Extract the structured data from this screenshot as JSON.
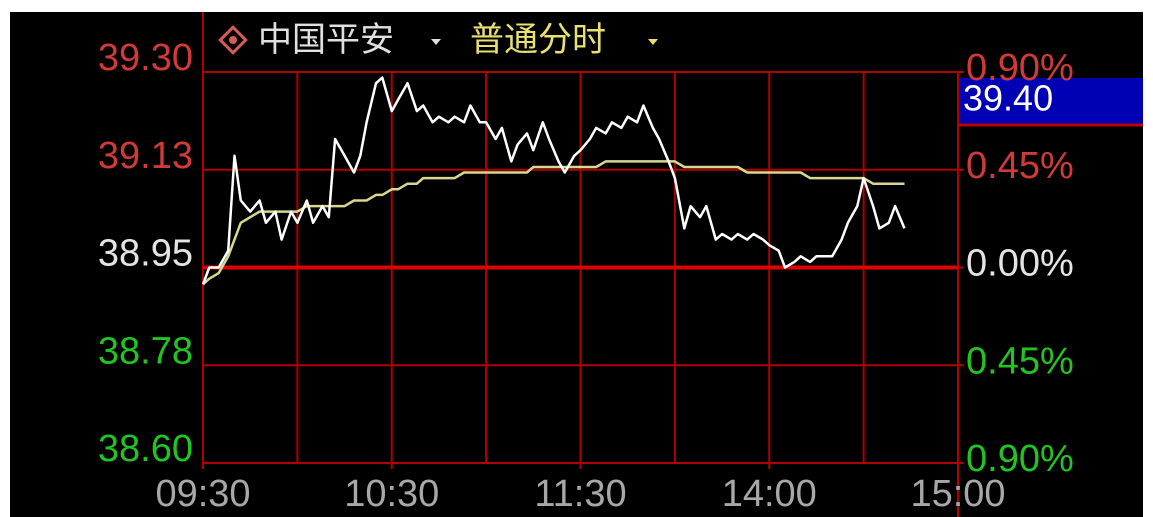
{
  "chart_data": {
    "type": "line",
    "stock_name": "中国平安",
    "view_mode": "普通分时",
    "current_price_label": "39.40",
    "x": [
      0,
      2,
      5,
      8,
      10,
      12,
      15,
      18,
      20,
      23,
      25,
      28,
      30,
      33,
      35,
      38,
      40,
      42,
      45,
      48,
      50,
      52,
      55,
      57,
      60,
      62,
      65,
      68,
      70,
      73,
      75,
      78,
      80,
      83,
      85,
      88,
      90,
      93,
      95,
      98,
      100,
      103,
      105,
      108,
      110,
      113,
      115,
      118,
      120,
      123,
      125,
      128,
      130,
      133,
      135,
      138,
      140,
      143,
      145,
      148,
      150,
      153,
      155,
      158,
      160,
      163,
      165,
      168,
      170,
      173,
      175,
      178,
      180,
      183,
      185,
      188,
      190,
      193,
      195,
      198,
      200,
      203,
      205,
      208,
      210,
      213,
      215,
      218,
      220,
      223
    ],
    "series": [
      {
        "color": "#ffffff",
        "values": [
          38.92,
          38.95,
          38.95,
          38.98,
          39.15,
          39.07,
          39.05,
          39.07,
          39.03,
          39.05,
          39.0,
          39.05,
          39.03,
          39.07,
          39.03,
          39.06,
          39.04,
          39.18,
          39.15,
          39.12,
          39.15,
          39.21,
          39.28,
          39.29,
          39.23,
          39.25,
          39.28,
          39.23,
          39.24,
          39.21,
          39.22,
          39.21,
          39.22,
          39.21,
          39.24,
          39.21,
          39.21,
          39.18,
          39.2,
          39.14,
          39.17,
          39.19,
          39.16,
          39.21,
          39.18,
          39.14,
          39.12,
          39.15,
          39.16,
          39.18,
          39.2,
          39.19,
          39.21,
          39.2,
          39.22,
          39.21,
          39.24,
          39.2,
          39.18,
          39.14,
          39.11,
          39.02,
          39.06,
          39.04,
          39.06,
          39.0,
          39.01,
          39.0,
          39.01,
          39.0,
          39.01,
          39.0,
          38.99,
          38.98,
          38.95,
          38.96,
          38.97,
          38.96,
          38.97,
          38.97,
          38.97,
          39.0,
          39.03,
          39.06,
          39.11,
          39.06,
          39.02,
          39.03,
          39.06,
          39.02
        ]
      },
      {
        "color": "#d8d890",
        "values": [
          38.92,
          38.93,
          38.94,
          38.97,
          39.0,
          39.03,
          39.04,
          39.05,
          39.05,
          39.05,
          39.05,
          39.05,
          39.05,
          39.06,
          39.06,
          39.06,
          39.06,
          39.06,
          39.06,
          39.07,
          39.07,
          39.07,
          39.08,
          39.08,
          39.09,
          39.09,
          39.1,
          39.1,
          39.11,
          39.11,
          39.11,
          39.11,
          39.11,
          39.12,
          39.12,
          39.12,
          39.12,
          39.12,
          39.12,
          39.12,
          39.12,
          39.12,
          39.13,
          39.13,
          39.13,
          39.13,
          39.13,
          39.13,
          39.13,
          39.13,
          39.13,
          39.14,
          39.14,
          39.14,
          39.14,
          39.14,
          39.14,
          39.14,
          39.14,
          39.14,
          39.14,
          39.13,
          39.13,
          39.13,
          39.13,
          39.13,
          39.13,
          39.13,
          39.13,
          39.12,
          39.12,
          39.12,
          39.12,
          39.12,
          39.12,
          39.12,
          39.12,
          39.11,
          39.11,
          39.11,
          39.11,
          39.11,
          39.11,
          39.11,
          39.11,
          39.1,
          39.1,
          39.1,
          39.1,
          39.1
        ]
      }
    ],
    "xlim": [
      0,
      240
    ],
    "xticks": [
      {
        "value": 0,
        "label": "09:30"
      },
      {
        "value": 60,
        "label": "10:30"
      },
      {
        "value": 120,
        "label": "11:30"
      },
      {
        "value": 180,
        "label": "14:00"
      },
      {
        "value": 240,
        "label": "15:00"
      }
    ],
    "xgrid_step": 30,
    "ylim": [
      38.6,
      39.3
    ],
    "yticks": [
      {
        "value": 39.3,
        "label": "39.30"
      },
      {
        "value": 39.125,
        "label": "39.13"
      },
      38.95,
      {
        "value": 38.775,
        "label": "38.78"
      },
      {
        "value": 38.6,
        "label": "38.60"
      }
    ],
    "y2lim": [
      -0.9,
      0.9
    ],
    "y2ticks": [
      {
        "value": 0.9,
        "label": "0.90%"
      },
      {
        "value": 0.45,
        "label": "0.45%"
      },
      {
        "value": 0,
        "label": "0.00%"
      },
      {
        "value": -0.45,
        "label": "0.45%"
      },
      {
        "value": -0.9,
        "label": "0.90%"
      }
    ],
    "grid": true,
    "grid_color": "#b00000",
    "up_color": "#d23a3a",
    "down_color": "#22c422",
    "flat_color": "#e4e4e4"
  }
}
